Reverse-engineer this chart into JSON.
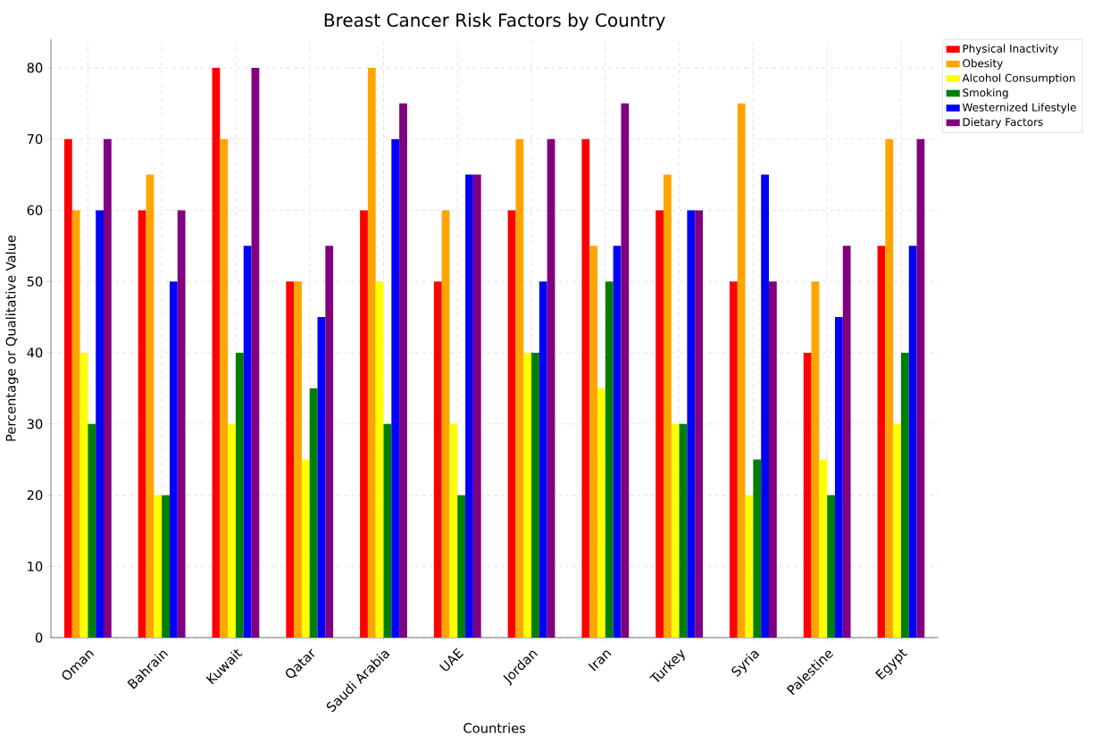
{
  "chart_data": {
    "type": "bar",
    "title": "Breast Cancer Risk Factors by Country",
    "xlabel": "Countries",
    "ylabel": "Percentage or Qualitative Value",
    "categories": [
      "Oman",
      "Bahrain",
      "Kuwait",
      "Qatar",
      "Saudi Arabia",
      "UAE",
      "Jordan",
      "Iran",
      "Turkey",
      "Syria",
      "Palestine",
      "Egypt"
    ],
    "series": [
      {
        "name": "Physical Inactivity",
        "color": "#ff0000",
        "values": [
          70,
          60,
          80,
          50,
          60,
          50,
          60,
          70,
          60,
          50,
          40,
          55
        ]
      },
      {
        "name": "Obesity",
        "color": "#ffa500",
        "values": [
          60,
          65,
          70,
          50,
          80,
          60,
          70,
          55,
          65,
          75,
          50,
          70
        ]
      },
      {
        "name": "Alcohol Consumption",
        "color": "#ffff00",
        "values": [
          40,
          20,
          30,
          25,
          50,
          30,
          40,
          35,
          30,
          20,
          25,
          30
        ]
      },
      {
        "name": "Smoking",
        "color": "#008000",
        "values": [
          30,
          20,
          40,
          35,
          30,
          20,
          40,
          50,
          30,
          25,
          20,
          40
        ]
      },
      {
        "name": "Westernized Lifestyle",
        "color": "#0000ff",
        "values": [
          60,
          50,
          55,
          45,
          70,
          65,
          50,
          55,
          60,
          65,
          45,
          55
        ]
      },
      {
        "name": "Dietary Factors",
        "color": "#800080",
        "values": [
          70,
          60,
          80,
          55,
          75,
          65,
          70,
          75,
          60,
          50,
          55,
          70
        ]
      }
    ],
    "ylim": [
      0,
      84
    ],
    "yticks": [
      0,
      10,
      20,
      30,
      40,
      50,
      60,
      70,
      80
    ],
    "grid": true,
    "legend": "top right"
  }
}
